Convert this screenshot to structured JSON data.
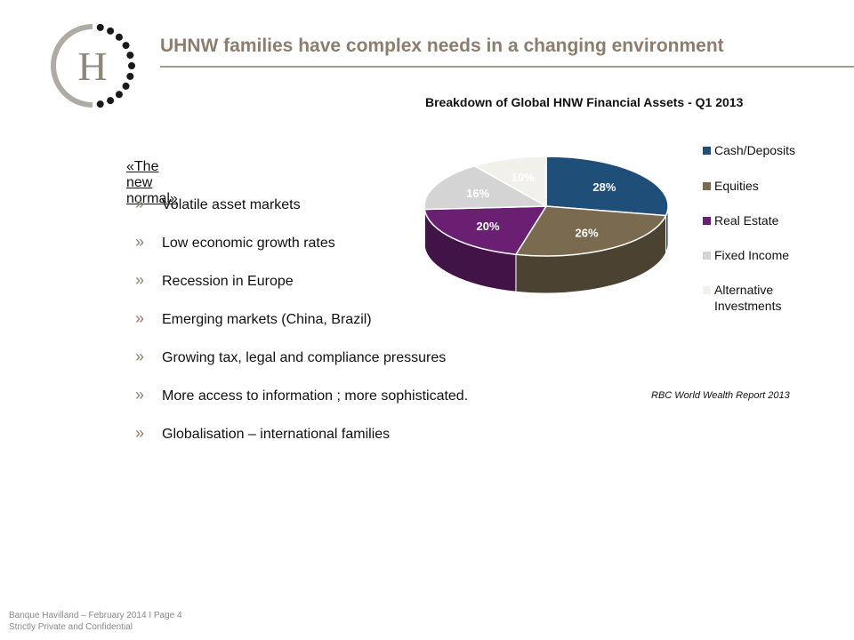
{
  "header": {
    "title": "UHNW families have complex needs in a changing environment",
    "logo_letter": "H"
  },
  "content": {
    "intro": "«The new normal»",
    "bullet_marker": "»",
    "bullets": [
      "Volatile asset markets",
      "Low economic growth rates",
      "Recession in Europe",
      "Emerging markets (China, Brazil)",
      "Growing tax, legal and compliance pressures",
      "More access to information ;  more sophisticated.",
      "Globalisation – international families"
    ]
  },
  "chart_data": {
    "type": "pie",
    "title": "Breakdown of Global HNW Financial Assets - Q1 2013",
    "categories": [
      "Cash/Deposits",
      "Equities",
      "Real Estate",
      "Fixed Income",
      "Alternative Investments"
    ],
    "values": [
      28,
      26,
      20,
      16,
      10
    ],
    "labels": [
      "28%",
      "26%",
      "20%",
      "16%",
      "10%"
    ],
    "colors": [
      "#1f4e79",
      "#7a6a4f",
      "#6b1f73",
      "#d4d4d4",
      "#f2f0ea"
    ],
    "legend_position": "right",
    "source": "RBC World Wealth Report 2013"
  },
  "footer": {
    "line1": "Banque Havilland – February 2014 I Page 4",
    "line2": "Strictly Private and Confidential"
  },
  "colors": {
    "title": "#8c7d6e",
    "rule": "#a59a8f"
  }
}
